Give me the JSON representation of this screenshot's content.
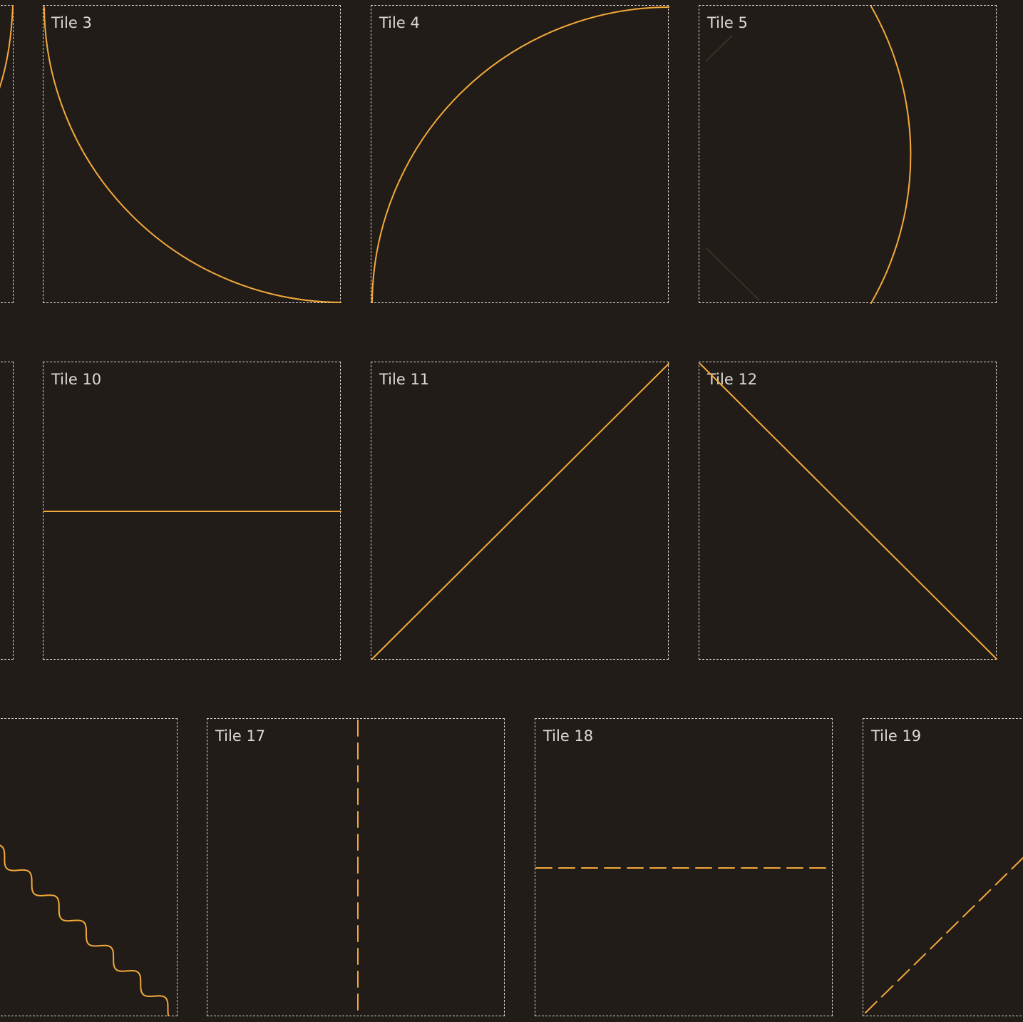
{
  "accent_color": "#f3a93c",
  "background_color": "#211c17",
  "border_color": "#d9d4cc",
  "tiles": {
    "t3": {
      "label": "Tile 3"
    },
    "t4": {
      "label": "Tile 4"
    },
    "t5": {
      "label": "Tile 5"
    },
    "t10": {
      "label": "Tile 10"
    },
    "t11": {
      "label": "Tile 11"
    },
    "t12": {
      "label": "Tile 12"
    },
    "t17": {
      "label": "Tile 17"
    },
    "t18": {
      "label": "Tile 18"
    },
    "t19": {
      "label": "Tile 19"
    }
  }
}
